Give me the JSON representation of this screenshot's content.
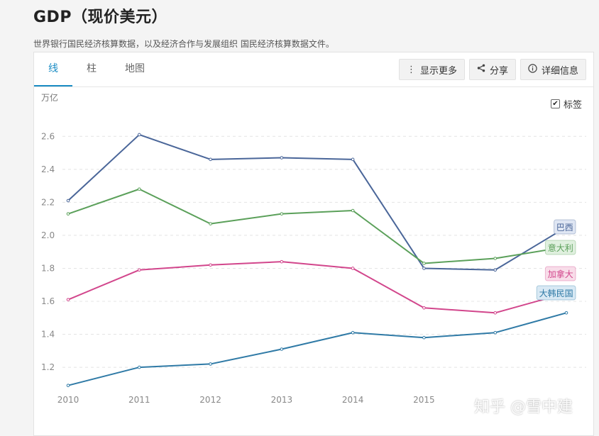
{
  "page": {
    "title": "GDP（现价美元）",
    "subtitle": "世界银行国民经济核算数据，以及经济合作与发展组织 国民经济核算数据文件。"
  },
  "tabs": [
    {
      "label": "线",
      "active": true
    },
    {
      "label": "柱",
      "active": false
    },
    {
      "label": "地图",
      "active": false
    }
  ],
  "toolbar": {
    "more_label": "显示更多",
    "more_icon": "vertical-ellipsis-icon",
    "share_label": "分享",
    "share_icon": "share-icon",
    "details_label": "详细信息",
    "details_icon": "info-icon"
  },
  "labels_toggle": {
    "label": "标签",
    "checked": true
  },
  "watermark": "知乎 @雪中建",
  "chart_data": {
    "type": "line",
    "title": "",
    "xlabel": "",
    "ylabel": "万亿",
    "x": [
      2010,
      2011,
      2012,
      2013,
      2014,
      2015,
      2016,
      2017
    ],
    "x_tick_labels": [
      "2010",
      "2011",
      "2012",
      "2013",
      "2014",
      "2015"
    ],
    "ylim": [
      1.05,
      2.7
    ],
    "y_ticks": [
      1.2,
      1.4,
      1.6,
      1.8,
      2.0,
      2.2,
      2.4,
      2.6
    ],
    "grid": true,
    "legend": "end-of-line labels",
    "series": [
      {
        "name": "巴西",
        "color": "#4a6699",
        "label_bg": "#dfe6f3",
        "values": [
          2.21,
          2.61,
          2.46,
          2.47,
          2.46,
          1.8,
          1.79,
          2.05
        ]
      },
      {
        "name": "意大利",
        "color": "#5ba05a",
        "label_bg": "#e0f0df",
        "values": [
          2.13,
          2.28,
          2.07,
          2.13,
          2.15,
          1.83,
          1.86,
          1.93
        ]
      },
      {
        "name": "加拿大",
        "color": "#d2468c",
        "label_bg": "#f8dde9",
        "values": [
          1.61,
          1.79,
          1.82,
          1.84,
          1.8,
          1.56,
          1.53,
          1.65
        ]
      },
      {
        "name": "大韩民国",
        "color": "#2f7aa6",
        "label_bg": "#d9e9f4",
        "values": [
          1.09,
          1.2,
          1.22,
          1.31,
          1.41,
          1.38,
          1.41,
          1.53
        ]
      }
    ]
  }
}
